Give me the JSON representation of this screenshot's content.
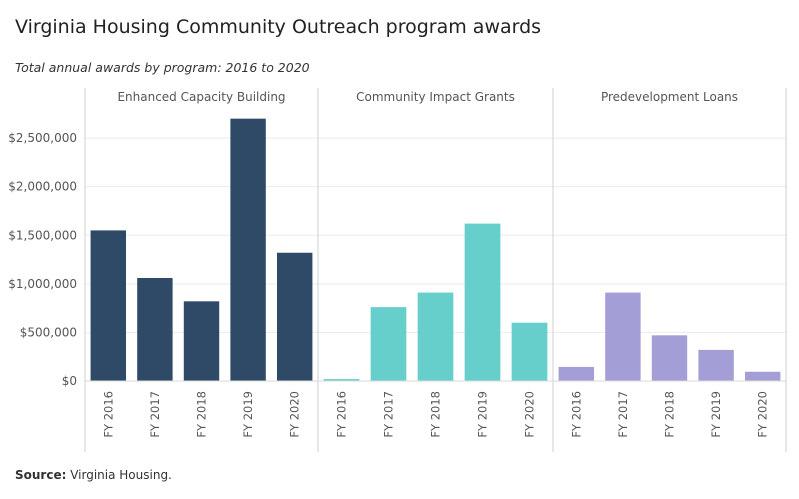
{
  "title": "Virginia Housing Community Outreach program awards",
  "subtitle": "Total annual awards by program: 2016 to 2020",
  "source": {
    "label": "Source:",
    "text": " Virginia Housing."
  },
  "chart_data": {
    "type": "bar",
    "categories": [
      "FY 2016",
      "FY 2017",
      "FY 2018",
      "FY 2019",
      "FY 2020"
    ],
    "y_ticks": [
      "$0",
      "$500,000",
      "$1,000,000",
      "$1,500,000",
      "$2,000,000",
      "$2,500,000"
    ],
    "y_tick_values": [
      0,
      500000,
      1000000,
      1500000,
      2000000,
      2500000
    ],
    "ylim": [
      0,
      2820000
    ],
    "grid": true,
    "panels": [
      {
        "name": "Enhanced Capacity Building",
        "color": "#2f4a67",
        "values": [
          1550000,
          1060000,
          820000,
          2700000,
          1320000
        ]
      },
      {
        "name": "Community Impact Grants",
        "color": "#66cfcc",
        "values": [
          20000,
          760000,
          910000,
          1620000,
          600000
        ]
      },
      {
        "name": "Predevelopment Loans",
        "color": "#a39fd6",
        "values": [
          145000,
          910000,
          470000,
          320000,
          95000
        ]
      }
    ]
  }
}
